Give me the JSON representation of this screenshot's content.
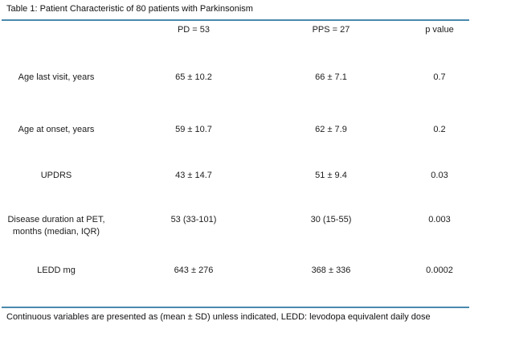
{
  "title": "Table 1: Patient Characteristic of 80 patients with Parkinsonism",
  "table": {
    "header": {
      "label": "",
      "pd": "PD = 53",
      "pps": "PPS = 27",
      "p": "p value"
    },
    "rows": [
      {
        "label": "Age last visit, years",
        "pd": "65 ± 10.2",
        "pps": "66 ± 7.1",
        "p": "0.7"
      },
      {
        "label": "Age at onset, years",
        "pd": "59 ± 10.7",
        "pps": "62 ± 7.9",
        "p": "0.2"
      },
      {
        "label": "UPDRS",
        "pd": "43 ± 14.7",
        "pps": "51 ± 9.4",
        "p": "0.03"
      },
      {
        "label": "Disease duration at PET, months (median, IQR)",
        "pd": "53 (33-101)",
        "pps": "30 (15-55)",
        "p": "0.003"
      },
      {
        "label": "LEDD mg",
        "pd": "643 ± 276",
        "pps": "368 ± 336",
        "p": "0.0002"
      }
    ]
  },
  "footer": "Continuous variables are presented as (mean ± SD) unless indicated, LEDD: levodopa equivalent daily dose",
  "colors": {
    "rule": "#4a89ad",
    "text": "#1c1c1c",
    "background": "#ffffff"
  }
}
